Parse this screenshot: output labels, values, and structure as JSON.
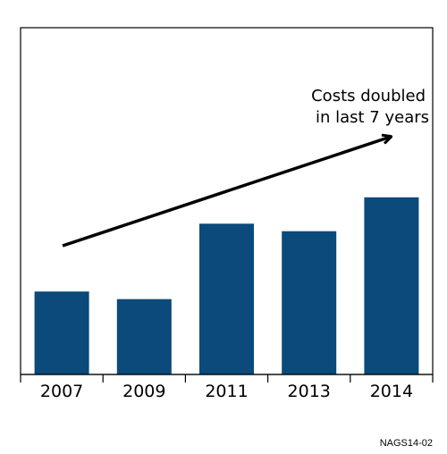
{
  "chart_data": {
    "type": "bar",
    "categories": [
      "2007",
      "2009",
      "2011",
      "2013",
      "2014"
    ],
    "values": [
      22,
      20,
      40,
      38,
      47
    ],
    "ylim": [
      0,
      92
    ],
    "grid": false,
    "legend": "none",
    "bar_color": "#0b4a7a",
    "annotation": {
      "lines": [
        "Costs doubled",
        "in last 7 years"
      ],
      "arrow": "trend arrow rising from 2007 toward 2014"
    }
  },
  "footer": {
    "code": "NAGS14-02"
  }
}
